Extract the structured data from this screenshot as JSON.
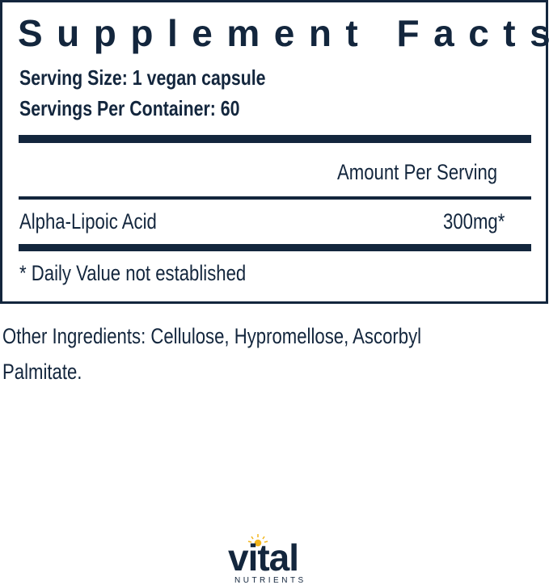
{
  "panel": {
    "title": "Supplement Facts",
    "serving_size": "Serving Size: 1 vegan capsule",
    "servings_per_container": "Servings Per Container: 60",
    "amount_header": "Amount Per Serving",
    "rows": [
      {
        "name": "Alpha-Lipoic Acid",
        "amount": "300mg*"
      }
    ],
    "footnote": "* Daily Value not established"
  },
  "other_ingredients": [
    "Other Ingredients: Cellulose, Hypromellose, Ascorbyl",
    "Palmitate."
  ],
  "logo": {
    "word": "vital",
    "sub": "NUTRIENTS"
  },
  "colors": {
    "navy": "#13263d",
    "sun": "#f2b51c"
  }
}
